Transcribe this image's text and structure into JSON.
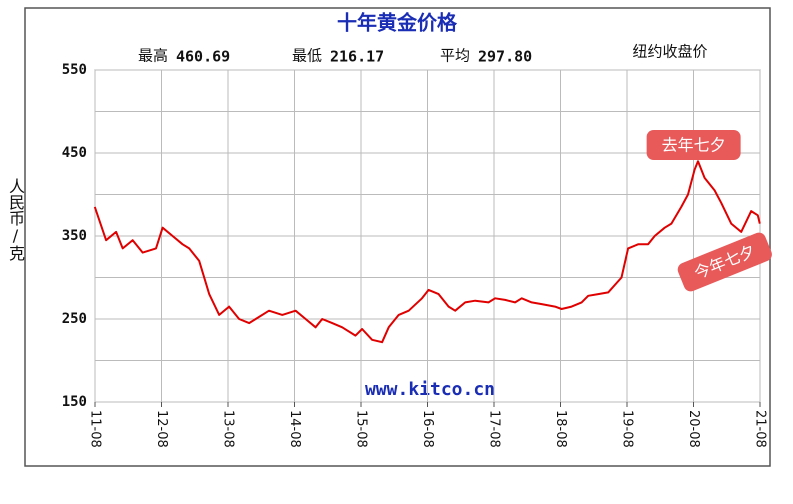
{
  "chart_data": {
    "type": "line",
    "title": "十年黄金价格",
    "stats": [
      {
        "label": "最高",
        "value": "460.69"
      },
      {
        "label": "最低",
        "value": "216.17"
      },
      {
        "label": "平均",
        "value": "297.80"
      }
    ],
    "subtitle": "纽约收盘价",
    "ylabel": "人民币/克",
    "watermark": "www.kitco.cn",
    "annotations": [
      {
        "text": "去年七夕",
        "x": 2020.6
      },
      {
        "text": "今年七夕",
        "x": 2021.58
      }
    ],
    "xlim": [
      2011.583,
      2021.583
    ],
    "xticks": [
      {
        "value": 2011.583,
        "label": "11-08"
      },
      {
        "value": 2012.583,
        "label": "12-08"
      },
      {
        "value": 2013.583,
        "label": "13-08"
      },
      {
        "value": 2014.583,
        "label": "14-08"
      },
      {
        "value": 2015.583,
        "label": "15-08"
      },
      {
        "value": 2016.583,
        "label": "16-08"
      },
      {
        "value": 2017.583,
        "label": "17-08"
      },
      {
        "value": 2018.583,
        "label": "18-08"
      },
      {
        "value": 2019.583,
        "label": "19-08"
      },
      {
        "value": 2020.583,
        "label": "20-08"
      },
      {
        "value": 2021.583,
        "label": "21-08"
      }
    ],
    "ylim": [
      150,
      550
    ],
    "yticks": [
      150,
      250,
      350,
      450,
      550
    ],
    "ygrid": [
      150,
      200,
      250,
      300,
      350,
      400,
      450,
      500,
      550
    ],
    "grid": true,
    "series": [
      {
        "color": "#e00000",
        "x": [
          2011.58,
          2011.75,
          2011.9,
          2012.0,
          2012.15,
          2012.3,
          2012.5,
          2012.6,
          2012.75,
          2012.9,
          2013.0,
          2013.15,
          2013.3,
          2013.45,
          2013.6,
          2013.75,
          2013.9,
          2014.0,
          2014.2,
          2014.4,
          2014.6,
          2014.75,
          2014.9,
          2015.0,
          2015.15,
          2015.3,
          2015.5,
          2015.6,
          2015.75,
          2015.9,
          2016.0,
          2016.15,
          2016.3,
          2016.5,
          2016.6,
          2016.75,
          2016.9,
          2017.0,
          2017.15,
          2017.3,
          2017.5,
          2017.6,
          2017.75,
          2017.9,
          2018.0,
          2018.15,
          2018.3,
          2018.5,
          2018.6,
          2018.75,
          2018.9,
          2019.0,
          2019.15,
          2019.3,
          2019.5,
          2019.6,
          2019.75,
          2019.9,
          2020.0,
          2020.15,
          2020.25,
          2020.4,
          2020.5,
          2020.6,
          2020.65,
          2020.75,
          2020.9,
          2021.0,
          2021.15,
          2021.3,
          2021.45,
          2021.55,
          2021.58
        ],
        "values": [
          385,
          345,
          355,
          335,
          345,
          330,
          335,
          360,
          350,
          340,
          335,
          320,
          280,
          255,
          265,
          250,
          245,
          250,
          260,
          255,
          260,
          250,
          240,
          250,
          245,
          240,
          230,
          238,
          225,
          222,
          240,
          255,
          260,
          275,
          285,
          280,
          265,
          260,
          270,
          272,
          270,
          275,
          273,
          270,
          275,
          270,
          268,
          265,
          262,
          265,
          270,
          278,
          280,
          282,
          300,
          335,
          340,
          340,
          350,
          360,
          365,
          385,
          400,
          430,
          440,
          420,
          405,
          390,
          365,
          355,
          380,
          375,
          365
        ]
      }
    ]
  }
}
